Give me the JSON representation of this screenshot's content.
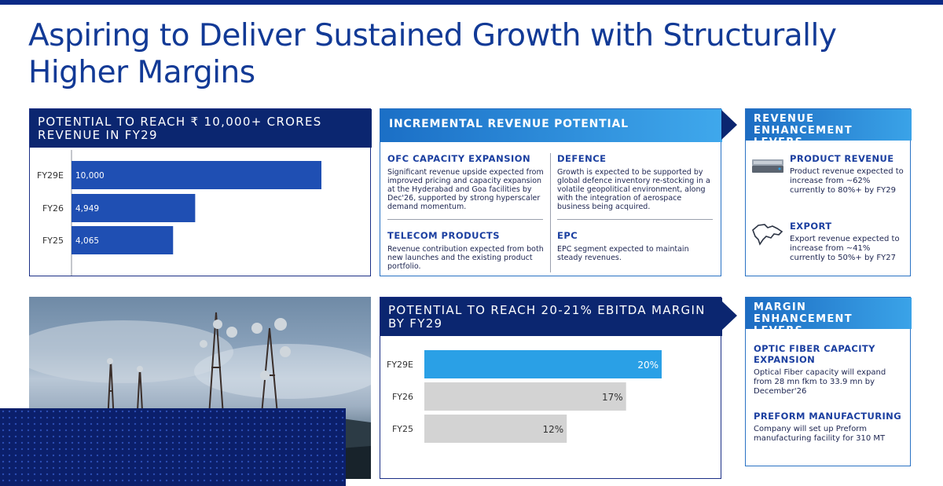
{
  "title": "Aspiring to Deliver Sustained Growth with Structurally Higher Margins",
  "revenue_panel": {
    "heading": "POTENTIAL TO REACH ₹ 10,000+ CRORES REVENUE IN FY29"
  },
  "incremental_panel": {
    "heading": "INCREMENTAL REVENUE POTENTIAL",
    "items": [
      {
        "title": "OFC CAPACITY EXPANSION",
        "text": "Significant revenue upside expected from improved pricing and capacity expansion at the Hyderabad and Goa facilities by Dec'26, supported by strong hyperscaler demand momentum."
      },
      {
        "title": "DEFENCE",
        "text": "Growth is expected to be supported by global defence inventory re-stocking in a volatile geopolitical environment, along with the integration of aerospace business being acquired."
      },
      {
        "title": "TELECOM PRODUCTS",
        "text": "Revenue contribution expected from both new launches and the existing product portfolio."
      },
      {
        "title": "EPC",
        "text": "EPC segment expected to maintain steady revenues."
      }
    ]
  },
  "revenue_levers": {
    "heading": "REVENUE ENHANCEMENT LEVERS",
    "items": [
      {
        "title": "PRODUCT REVENUE",
        "text": "Product revenue expected to increase  from ~62% currently to 80%+ by FY29",
        "icon": "server-icon"
      },
      {
        "title": "EXPORT",
        "text": "Export revenue expected to increase  from ~41% currently to 50%+ by FY27",
        "icon": "world-map-icon"
      }
    ]
  },
  "margin_levers": {
    "heading": "MARGIN ENHANCEMENT LEVERS",
    "items": [
      {
        "title": "OPTIC FIBER CAPACITY EXPANSION",
        "text": "Optical Fiber capacity will expand from 28 mn fkm to 33.9 mn by December'26"
      },
      {
        "title": "PREFORM MANUFACTURING",
        "text": "Company will set  up Preform manufacturing facility for 310 MT"
      }
    ]
  },
  "ebitda_panel": {
    "heading": "POTENTIAL TO REACH 20-21% EBITDA MARGIN BY FY29"
  },
  "colors": {
    "navy": "#0b2670",
    "bar_blue": "#1f4fb3",
    "bar_cyan": "#2aa0e6",
    "bar_grey": "#d3d3d3",
    "title_blue": "#123a96"
  },
  "chart_data": [
    {
      "type": "bar",
      "orientation": "horizontal",
      "title": "POTENTIAL TO REACH ₹ 10,000+ CRORES REVENUE IN FY29",
      "categories": [
        "FY29E",
        "FY26",
        "FY25"
      ],
      "values": [
        10000,
        4949,
        4065
      ],
      "labels": [
        "10,000",
        "4,949",
        "4,065"
      ],
      "xlim": [
        0,
        10000
      ]
    },
    {
      "type": "bar",
      "orientation": "horizontal",
      "title": "POTENTIAL TO REACH 20-21% EBITDA MARGIN BY FY29",
      "categories": [
        "FY29E",
        "FY26",
        "FY25"
      ],
      "values": [
        20,
        17,
        12
      ],
      "labels": [
        "20%",
        "17%",
        "12%"
      ],
      "xlim": [
        0,
        20
      ]
    }
  ]
}
